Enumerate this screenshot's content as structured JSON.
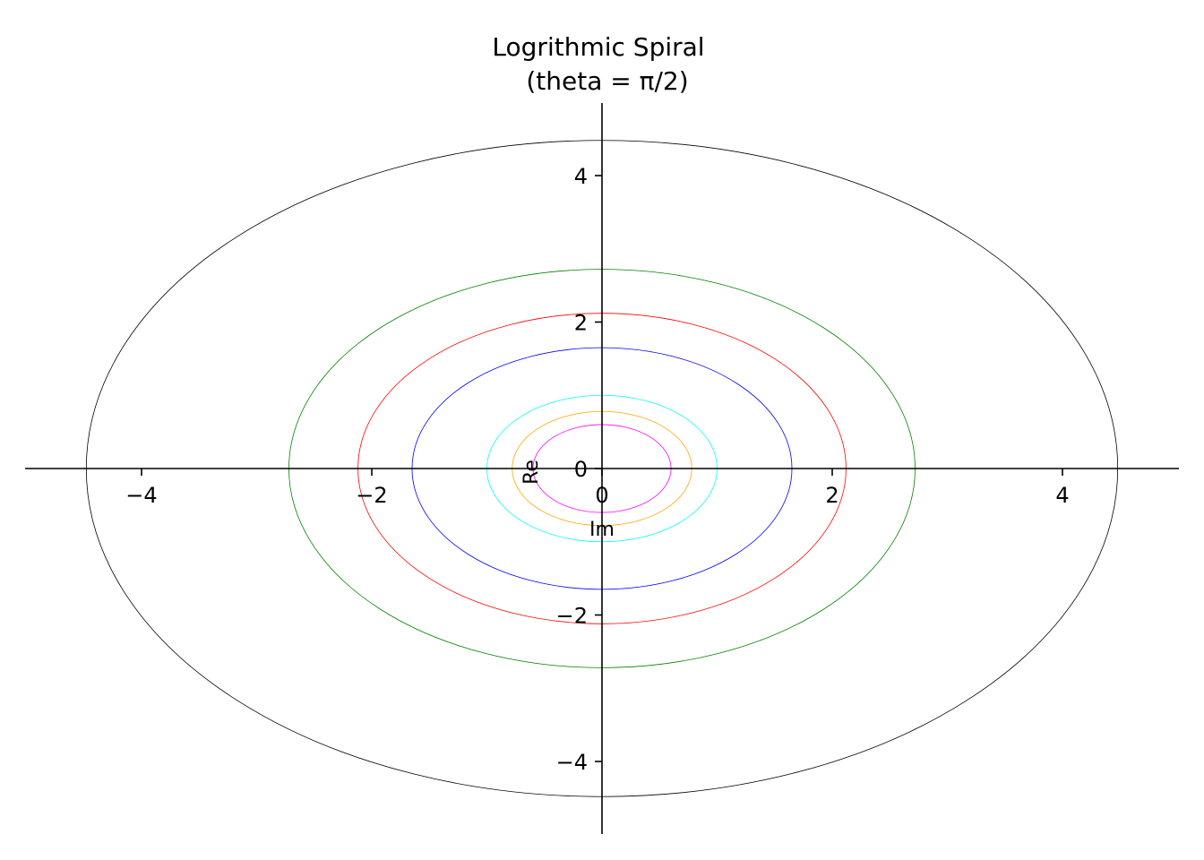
{
  "chart_data": {
    "type": "line",
    "title": "Logrithmic Spiral",
    "subtitle": "(theta = π/2)",
    "xlabel": "Im",
    "ylabel": "Re",
    "xlim": [
      -5.0,
      5.0
    ],
    "ylim": [
      -5.0,
      5.0
    ],
    "xticks": [
      -4,
      -2,
      0,
      2,
      4
    ],
    "yticks": [
      -4,
      -2,
      0,
      2,
      4
    ],
    "xtick_labels": [
      "−4",
      "−2",
      "0",
      "2",
      "4"
    ],
    "ytick_labels": [
      "−4",
      "−2",
      "0",
      "2",
      "4"
    ],
    "grid": false,
    "series": [
      {
        "color": "#ff00ff",
        "radius": 0.6
      },
      {
        "color": "#ffa500",
        "radius": 0.78
      },
      {
        "color": "#00ffff",
        "radius": 1.0
      },
      {
        "color": "#0000ff",
        "radius": 1.65
      },
      {
        "color": "#ff0000",
        "radius": 2.12
      },
      {
        "color": "#008000",
        "radius": 2.72
      },
      {
        "color": "#000000",
        "radius": 4.48
      }
    ]
  }
}
